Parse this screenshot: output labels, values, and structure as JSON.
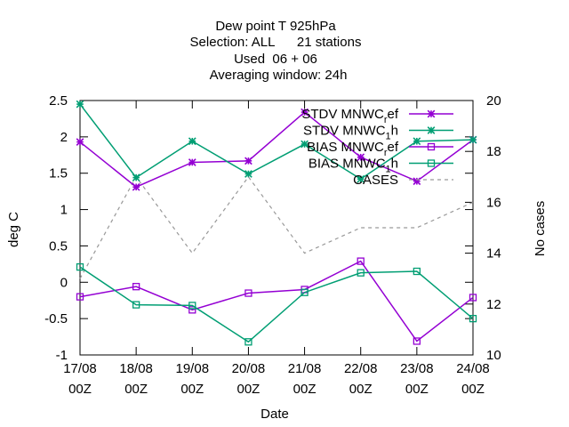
{
  "chart_data": {
    "type": "line",
    "title_lines": [
      "Dew point T 925hPa",
      "Selection: ALL      21 stations",
      "Used  06 + 06",
      "Averaging window: 24h"
    ],
    "xlabel": "Date",
    "ylabel": "deg C",
    "y2label": "No cases",
    "categories": [
      [
        "17/08",
        "00Z"
      ],
      [
        "18/08",
        "00Z"
      ],
      [
        "19/08",
        "00Z"
      ],
      [
        "20/08",
        "00Z"
      ],
      [
        "21/08",
        "00Z"
      ],
      [
        "22/08",
        "00Z"
      ],
      [
        "23/08",
        "00Z"
      ],
      [
        "24/08",
        "00Z"
      ]
    ],
    "ylim": [
      -1,
      2.5
    ],
    "y_ticks": [
      "2.5",
      "2",
      "1.5",
      "1",
      "0.5",
      "0",
      "-0.5",
      "-1"
    ],
    "y2lim": [
      10,
      20
    ],
    "y2_ticks": [
      "20",
      "18",
      "16",
      "14",
      "12",
      "10"
    ],
    "grid": false,
    "legend_position": "top-right",
    "series": [
      {
        "legend_main": "STDV MNWC",
        "legend_sub": "r",
        "legend_tail": "ef",
        "color": "#9400d3",
        "marker": "star",
        "dash": "solid",
        "axis": "y",
        "values": [
          1.93,
          1.31,
          1.65,
          1.67,
          2.34,
          1.72,
          1.39,
          1.96
        ]
      },
      {
        "legend_main": "STDV MNWC",
        "legend_sub": "1",
        "legend_tail": "h",
        "color": "#009e73",
        "marker": "star",
        "dash": "solid",
        "axis": "y",
        "values": [
          2.45,
          1.44,
          1.94,
          1.49,
          1.9,
          1.42,
          1.94,
          1.96
        ]
      },
      {
        "legend_main": "BIAS MNWC",
        "legend_sub": "r",
        "legend_tail": "ef",
        "color": "#9400d3",
        "marker": "square",
        "dash": "solid",
        "axis": "y",
        "values": [
          -0.2,
          -0.06,
          -0.38,
          -0.15,
          -0.1,
          0.29,
          -0.81,
          -0.21
        ]
      },
      {
        "legend_main": "BIAS MNWC",
        "legend_sub": "1",
        "legend_tail": "h",
        "color": "#009e73",
        "marker": "square",
        "dash": "solid",
        "axis": "y",
        "values": [
          0.21,
          -0.31,
          -0.32,
          -0.82,
          -0.14,
          0.13,
          0.15,
          -0.5
        ]
      },
      {
        "legend_main": "CASES",
        "legend_sub": "",
        "legend_tail": "",
        "color": "#999999",
        "marker": "none",
        "dash": "dashed",
        "axis": "y2",
        "values": [
          13,
          17,
          14,
          17,
          14,
          15,
          15,
          16
        ]
      }
    ]
  }
}
